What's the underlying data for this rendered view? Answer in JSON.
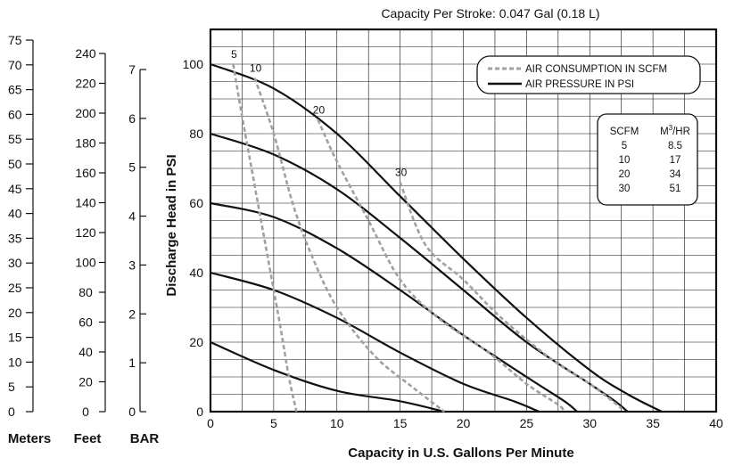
{
  "chart_data": {
    "type": "line",
    "title": "Capacity Per Stroke: 0.047 Gal (0.18 L)",
    "xlabel": "Capacity in U.S. Gallons Per Minute",
    "ylabel": "Discharge Head in PSI",
    "xlim": [
      0,
      40
    ],
    "ylim": [
      0,
      110
    ],
    "x_ticks": [
      "0",
      "5",
      "10",
      "15",
      "20",
      "25",
      "30",
      "35",
      "40"
    ],
    "y_ticks": [
      "0",
      "20",
      "40",
      "60",
      "80",
      "100"
    ],
    "grid": true,
    "legend": {
      "placement": "top-right",
      "entries": [
        {
          "label": "AIR CONSUMPTION IN SCFM",
          "style": "dashed",
          "color": "#a0a0a0"
        },
        {
          "label": "AIR PRESSURE IN PSI",
          "style": "solid",
          "color": "#111111"
        }
      ]
    },
    "pressure_curves": [
      {
        "points": [
          [
            0,
            100
          ],
          [
            5,
            93
          ],
          [
            10,
            80
          ],
          [
            15,
            62
          ],
          [
            20,
            44
          ],
          [
            25,
            27
          ],
          [
            30,
            12
          ],
          [
            33,
            5
          ],
          [
            35.7,
            0
          ]
        ]
      },
      {
        "points": [
          [
            0,
            80
          ],
          [
            5,
            74
          ],
          [
            10,
            64
          ],
          [
            15,
            50
          ],
          [
            20,
            35
          ],
          [
            25,
            20
          ],
          [
            30,
            8
          ],
          [
            32,
            3
          ],
          [
            33,
            0
          ]
        ]
      },
      {
        "points": [
          [
            0,
            60
          ],
          [
            5,
            56
          ],
          [
            10,
            47
          ],
          [
            15,
            35
          ],
          [
            20,
            22
          ],
          [
            25,
            10
          ],
          [
            28,
            3
          ],
          [
            29,
            0
          ]
        ]
      },
      {
        "points": [
          [
            0,
            40
          ],
          [
            5,
            35
          ],
          [
            10,
            27
          ],
          [
            15,
            17
          ],
          [
            20,
            8
          ],
          [
            24,
            3
          ],
          [
            26,
            0
          ]
        ]
      },
      {
        "points": [
          [
            0,
            20
          ],
          [
            5,
            12
          ],
          [
            10,
            6
          ],
          [
            15,
            3
          ],
          [
            18.5,
            0
          ]
        ]
      }
    ],
    "consumption_curves": [
      {
        "label": "5",
        "points": [
          [
            1.8,
            100
          ],
          [
            2.5,
            85
          ],
          [
            3.5,
            65
          ],
          [
            4.5,
            45
          ],
          [
            5.5,
            25
          ],
          [
            6.2,
            10
          ],
          [
            6.8,
            0
          ]
        ]
      },
      {
        "label": "10",
        "points": [
          [
            3.5,
            96
          ],
          [
            5,
            80
          ],
          [
            6.5,
            60
          ],
          [
            8,
            45
          ],
          [
            10,
            30
          ],
          [
            13,
            16
          ],
          [
            16,
            7
          ],
          [
            18.5,
            0
          ]
        ]
      },
      {
        "label": "20",
        "points": [
          [
            8.5,
            84
          ],
          [
            10,
            72
          ],
          [
            12.5,
            55
          ],
          [
            15,
            38
          ],
          [
            18,
            27
          ],
          [
            22,
            17
          ],
          [
            25,
            8
          ],
          [
            27.5,
            2
          ],
          [
            28,
            0
          ]
        ]
      },
      {
        "label": "30",
        "points": [
          [
            15,
            66
          ],
          [
            17,
            48
          ],
          [
            20,
            38
          ],
          [
            23,
            27
          ],
          [
            27,
            15
          ],
          [
            30,
            8
          ],
          [
            32.5,
            1
          ]
        ]
      }
    ],
    "scfm_table": {
      "headers": [
        "SCFM",
        "M3/HR"
      ],
      "rows": [
        [
          "5",
          "8.5"
        ],
        [
          "10",
          "17"
        ],
        [
          "20",
          "34"
        ],
        [
          "30",
          "51"
        ]
      ]
    },
    "secondary_scales": [
      {
        "label": "Meters",
        "ticks": [
          "0",
          "5",
          "10",
          "15",
          "20",
          "25",
          "30",
          "35",
          "40",
          "45",
          "50",
          "55",
          "60",
          "65",
          "70",
          "75"
        ],
        "range": [
          0,
          75
        ]
      },
      {
        "label": "Feet",
        "ticks": [
          "0",
          "20",
          "40",
          "60",
          "80",
          "100",
          "120",
          "140",
          "160",
          "180",
          "200",
          "220",
          "240"
        ],
        "range": [
          0,
          240
        ]
      },
      {
        "label": "BAR",
        "ticks": [
          "0",
          "1",
          "2",
          "3",
          "4",
          "5",
          "6",
          "7"
        ],
        "range": [
          0,
          7
        ]
      }
    ]
  }
}
